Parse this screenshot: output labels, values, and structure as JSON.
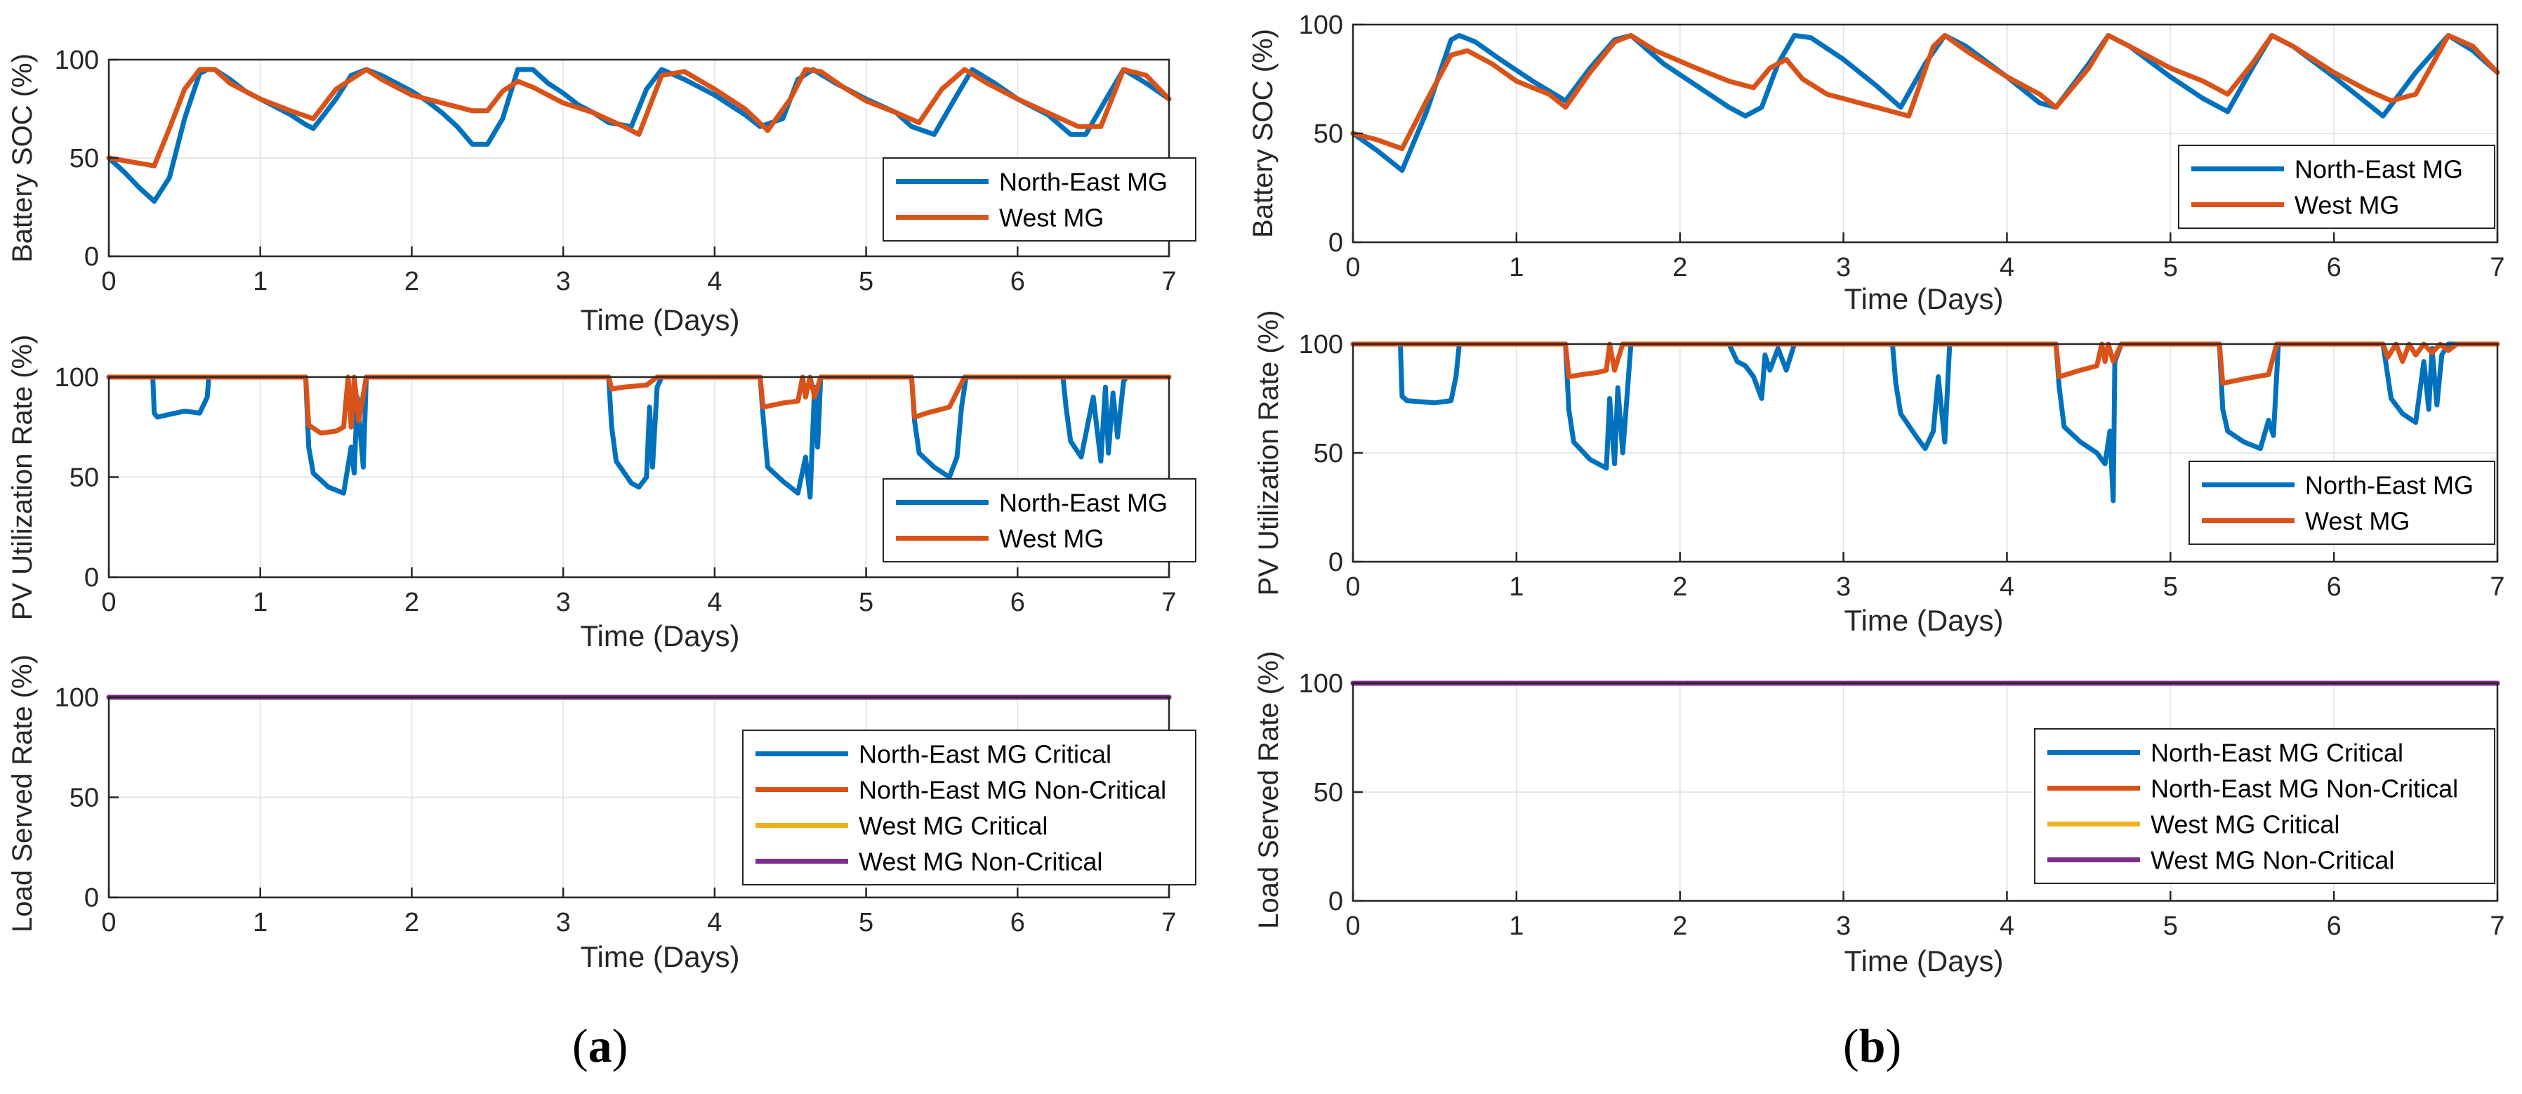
{
  "captions": {
    "a_open": "(",
    "a_letter": "a",
    "a_close": ")",
    "b_open": "(",
    "b_letter": "b",
    "b_close": ")"
  },
  "colors": {
    "north_east": "#0072BD",
    "west": "#D95319",
    "west_critical": "#EDB120",
    "west_noncritical": "#7E2F8E",
    "grid": "#e6e6e6",
    "axis": "#262626"
  },
  "chart_data": [
    {
      "id": "a-soc",
      "panel": "a",
      "type": "line",
      "xlabel": "Time (Days)",
      "ylabel": "Battery SOC (%)",
      "xlim": [
        0,
        7
      ],
      "ylim": [
        0,
        100
      ],
      "xticks": [
        0,
        1,
        2,
        3,
        4,
        5,
        6,
        7
      ],
      "yticks": [
        0,
        50,
        100
      ],
      "grid": true,
      "legend": "right-middle",
      "series": [
        {
          "name": "North-East MG",
          "color": "#0072BD",
          "x": [
            0,
            0.1,
            0.2,
            0.3,
            0.4,
            0.5,
            0.6,
            0.65,
            0.7,
            0.8,
            0.9,
            1.0,
            1.1,
            1.2,
            1.3,
            1.35,
            1.5,
            1.6,
            1.7,
            1.8,
            1.9,
            2.0,
            2.1,
            2.2,
            2.3,
            2.4,
            2.5,
            2.6,
            2.7,
            2.8,
            2.9,
            3.0,
            3.1,
            3.2,
            3.3,
            3.45,
            3.55,
            3.65,
            3.8,
            4.0,
            4.2,
            4.3,
            4.45,
            4.55,
            4.65,
            4.8,
            5.0,
            5.2,
            5.3,
            5.45,
            5.6,
            5.7,
            5.85,
            6.0,
            6.2,
            6.35,
            6.45,
            6.6,
            6.7,
            6.85,
            7.0
          ],
          "y": [
            50,
            43,
            35,
            28,
            40,
            70,
            93,
            95,
            95,
            90,
            84,
            80,
            76,
            72,
            67,
            65,
            80,
            92,
            95,
            92,
            88,
            84,
            79,
            73,
            66,
            57,
            57,
            70,
            95,
            95,
            88,
            83,
            77,
            73,
            68,
            66,
            85,
            95,
            90,
            82,
            72,
            66,
            70,
            90,
            95,
            88,
            80,
            73,
            66,
            62,
            82,
            95,
            88,
            80,
            72,
            62,
            62,
            82,
            95,
            88,
            80
          ]
        },
        {
          "name": "West MG",
          "color": "#D95319",
          "x": [
            0,
            0.15,
            0.3,
            0.4,
            0.5,
            0.6,
            0.7,
            0.8,
            1.0,
            1.2,
            1.35,
            1.5,
            1.7,
            1.8,
            2.0,
            2.2,
            2.4,
            2.5,
            2.6,
            2.7,
            2.8,
            3.0,
            3.2,
            3.4,
            3.5,
            3.65,
            3.8,
            4.0,
            4.2,
            4.35,
            4.5,
            4.6,
            4.7,
            4.85,
            5.0,
            5.2,
            5.35,
            5.5,
            5.65,
            5.8,
            6.0,
            6.2,
            6.4,
            6.55,
            6.7,
            6.85,
            7.0
          ],
          "y": [
            50,
            48,
            46,
            65,
            85,
            95,
            95,
            88,
            80,
            74,
            70,
            85,
            95,
            90,
            82,
            78,
            74,
            74,
            84,
            89,
            86,
            78,
            73,
            66,
            62,
            92,
            94,
            85,
            75,
            64,
            80,
            95,
            94,
            86,
            79,
            73,
            68,
            85,
            95,
            88,
            80,
            73,
            66,
            66,
            95,
            92,
            80
          ]
        }
      ]
    },
    {
      "id": "a-pv",
      "panel": "a",
      "type": "line",
      "xlabel": "Time (Days)",
      "ylabel": "PV Utilization Rate (%)",
      "xlim": [
        0,
        7
      ],
      "ylim": [
        0,
        100
      ],
      "xticks": [
        0,
        1,
        2,
        3,
        4,
        5,
        6,
        7
      ],
      "yticks": [
        0,
        50,
        100
      ],
      "grid": true,
      "legend": "right-middle",
      "series": [
        {
          "name": "North-East MG",
          "color": "#0072BD",
          "x": [
            0,
            0.29,
            0.3,
            0.32,
            0.5,
            0.6,
            0.65,
            0.66,
            1.3,
            1.32,
            1.35,
            1.45,
            1.55,
            1.6,
            1.62,
            1.64,
            1.68,
            1.7,
            3.3,
            3.32,
            3.35,
            3.45,
            3.5,
            3.55,
            3.57,
            3.59,
            3.62,
            3.65,
            4.3,
            4.32,
            4.35,
            4.45,
            4.55,
            4.6,
            4.63,
            4.66,
            4.68,
            4.7,
            5.3,
            5.32,
            5.35,
            5.45,
            5.55,
            5.6,
            5.63,
            5.66,
            6.3,
            6.32,
            6.35,
            6.42,
            6.5,
            6.55,
            6.58,
            6.6,
            6.63,
            6.66,
            6.7,
            6.72,
            7.0
          ],
          "y": [
            100,
            100,
            82,
            80,
            83,
            82,
            90,
            100,
            100,
            65,
            52,
            45,
            42,
            65,
            52,
            90,
            55,
            100,
            100,
            75,
            58,
            47,
            45,
            50,
            85,
            55,
            95,
            100,
            100,
            80,
            55,
            48,
            42,
            60,
            40,
            95,
            65,
            100,
            100,
            78,
            62,
            55,
            50,
            60,
            85,
            100,
            100,
            85,
            68,
            60,
            90,
            58,
            95,
            62,
            92,
            70,
            98,
            100,
            100
          ]
        },
        {
          "name": "West MG",
          "color": "#D95319",
          "x": [
            0,
            1.3,
            1.32,
            1.4,
            1.5,
            1.55,
            1.58,
            1.6,
            1.62,
            1.65,
            1.7,
            3.3,
            3.32,
            3.4,
            3.55,
            3.62,
            4.3,
            4.32,
            4.45,
            4.55,
            4.58,
            4.6,
            4.63,
            4.66,
            4.7,
            5.3,
            5.32,
            5.4,
            5.55,
            5.65,
            7.0
          ],
          "y": [
            100,
            100,
            76,
            72,
            73,
            75,
            100,
            75,
            100,
            78,
            100,
            100,
            94,
            95,
            96,
            100,
            100,
            85,
            87,
            88,
            100,
            90,
            100,
            90,
            100,
            100,
            80,
            82,
            85,
            100,
            100
          ]
        }
      ]
    },
    {
      "id": "a-load",
      "panel": "a",
      "type": "line",
      "xlabel": "Time (Days)",
      "ylabel": "Load Served Rate (%)",
      "xlim": [
        0,
        7
      ],
      "ylim": [
        0,
        100
      ],
      "xticks": [
        0,
        1,
        2,
        3,
        4,
        5,
        6,
        7
      ],
      "yticks": [
        0,
        50,
        100
      ],
      "grid": true,
      "legend": "right-middle",
      "series": [
        {
          "name": "North-East MG Critical",
          "color": "#0072BD",
          "x": [
            0,
            7
          ],
          "y": [
            100,
            100
          ]
        },
        {
          "name": "North-East MG Non-Critical",
          "color": "#D95319",
          "x": [
            0,
            7
          ],
          "y": [
            100,
            100
          ]
        },
        {
          "name": "West MG Critical",
          "color": "#EDB120",
          "x": [
            0,
            7
          ],
          "y": [
            100,
            100
          ]
        },
        {
          "name": "West MG Non-Critical",
          "color": "#7E2F8E",
          "x": [
            0,
            7
          ],
          "y": [
            100,
            100
          ]
        }
      ]
    },
    {
      "id": "b-soc",
      "panel": "b",
      "type": "line",
      "xlabel": "Time (Days)",
      "ylabel": "Battery SOC (%)",
      "xlim": [
        0,
        7
      ],
      "ylim": [
        0,
        100
      ],
      "xticks": [
        0,
        1,
        2,
        3,
        4,
        5,
        6,
        7
      ],
      "yticks": [
        0,
        50,
        100
      ],
      "grid": true,
      "legend": "right-middle",
      "series": [
        {
          "name": "North-East MG",
          "color": "#0072BD",
          "x": [
            0,
            0.15,
            0.3,
            0.45,
            0.6,
            0.65,
            0.75,
            0.9,
            1.1,
            1.3,
            1.45,
            1.6,
            1.7,
            1.9,
            2.1,
            2.3,
            2.4,
            2.5,
            2.6,
            2.7,
            2.8,
            3.0,
            3.2,
            3.35,
            3.5,
            3.62,
            3.75,
            4.0,
            4.2,
            4.3,
            4.5,
            4.62,
            4.75,
            5.0,
            5.2,
            5.35,
            5.5,
            5.62,
            5.75,
            6.0,
            6.2,
            6.3,
            6.5,
            6.7,
            6.85,
            7.0
          ],
          "y": [
            50,
            42,
            33,
            60,
            93,
            95,
            92,
            84,
            74,
            65,
            80,
            93,
            95,
            82,
            72,
            62,
            58,
            62,
            82,
            95,
            94,
            84,
            72,
            62,
            82,
            95,
            90,
            76,
            64,
            62,
            82,
            95,
            90,
            76,
            66,
            60,
            80,
            95,
            90,
            76,
            64,
            58,
            78,
            95,
            88,
            78
          ]
        },
        {
          "name": "West MG",
          "color": "#D95319",
          "x": [
            0,
            0.15,
            0.3,
            0.45,
            0.6,
            0.7,
            0.85,
            1.0,
            1.2,
            1.3,
            1.45,
            1.6,
            1.7,
            1.85,
            2.1,
            2.3,
            2.45,
            2.55,
            2.65,
            2.75,
            2.9,
            3.2,
            3.4,
            3.55,
            3.62,
            3.75,
            4.0,
            4.2,
            4.3,
            4.5,
            4.62,
            4.75,
            5.0,
            5.2,
            5.35,
            5.5,
            5.62,
            5.75,
            6.0,
            6.2,
            6.35,
            6.5,
            6.7,
            6.85,
            7.0
          ],
          "y": [
            50,
            47,
            43,
            65,
            86,
            88,
            82,
            74,
            68,
            62,
            78,
            92,
            95,
            88,
            80,
            74,
            71,
            80,
            84,
            75,
            68,
            62,
            58,
            90,
            95,
            88,
            76,
            68,
            62,
            80,
            95,
            90,
            80,
            74,
            68,
            82,
            95,
            90,
            78,
            70,
            65,
            68,
            95,
            90,
            78
          ]
        }
      ]
    },
    {
      "id": "b-pv",
      "panel": "b",
      "type": "line",
      "xlabel": "Time (Days)",
      "ylabel": "PV Utilization Rate (%)",
      "xlim": [
        0,
        7
      ],
      "ylim": [
        0,
        100
      ],
      "xticks": [
        0,
        1,
        2,
        3,
        4,
        5,
        6,
        7
      ],
      "yticks": [
        0,
        50,
        100
      ],
      "grid": true,
      "legend": "right-middle",
      "series": [
        {
          "name": "North-East MG",
          "color": "#0072BD",
          "x": [
            0,
            0.29,
            0.3,
            0.33,
            0.5,
            0.6,
            0.63,
            0.65,
            1.3,
            1.32,
            1.35,
            1.45,
            1.55,
            1.57,
            1.6,
            1.62,
            1.65,
            1.7,
            2.3,
            2.35,
            2.4,
            2.45,
            2.5,
            2.52,
            2.55,
            2.6,
            2.65,
            2.7,
            3.3,
            3.32,
            3.35,
            3.45,
            3.5,
            3.55,
            3.58,
            3.62,
            3.65,
            4.3,
            4.32,
            4.35,
            4.45,
            4.55,
            4.6,
            4.63,
            4.65,
            4.66,
            4.7,
            5.3,
            5.32,
            5.35,
            5.45,
            5.55,
            5.6,
            5.63,
            5.66,
            6.3,
            6.32,
            6.35,
            6.42,
            6.5,
            6.55,
            6.58,
            6.6,
            6.63,
            6.66,
            6.7,
            6.72,
            7.0
          ],
          "y": [
            100,
            100,
            76,
            74,
            73,
            74,
            85,
            100,
            100,
            70,
            55,
            47,
            43,
            75,
            45,
            80,
            50,
            100,
            100,
            92,
            90,
            85,
            75,
            95,
            88,
            98,
            88,
            100,
            100,
            82,
            68,
            57,
            52,
            60,
            85,
            55,
            100,
            100,
            80,
            62,
            55,
            50,
            45,
            60,
            28,
            92,
            100,
            100,
            70,
            60,
            55,
            52,
            65,
            58,
            100,
            100,
            90,
            75,
            68,
            64,
            92,
            70,
            98,
            72,
            95,
            100,
            100,
            100
          ]
        },
        {
          "name": "West MG",
          "color": "#D95319",
          "x": [
            0,
            1.3,
            1.32,
            1.4,
            1.5,
            1.55,
            1.57,
            1.6,
            1.65,
            1.7,
            4.3,
            4.32,
            4.45,
            4.55,
            4.58,
            4.6,
            4.62,
            4.65,
            4.7,
            5.3,
            5.32,
            5.45,
            5.6,
            5.65,
            6.3,
            6.33,
            6.38,
            6.42,
            6.46,
            6.5,
            6.55,
            6.6,
            6.65,
            6.7,
            6.75,
            7.0
          ],
          "y": [
            100,
            100,
            85,
            86,
            87,
            88,
            100,
            88,
            100,
            100,
            100,
            85,
            88,
            90,
            100,
            92,
            100,
            92,
            100,
            100,
            82,
            84,
            86,
            100,
            100,
            94,
            100,
            92,
            100,
            95,
            100,
            96,
            100,
            97,
            100,
            100
          ]
        }
      ]
    },
    {
      "id": "b-load",
      "panel": "b",
      "type": "line",
      "xlabel": "Time (Days)",
      "ylabel": "Load Served Rate (%)",
      "xlim": [
        0,
        7
      ],
      "ylim": [
        0,
        100
      ],
      "xticks": [
        0,
        1,
        2,
        3,
        4,
        5,
        6,
        7
      ],
      "yticks": [
        0,
        50,
        100
      ],
      "grid": true,
      "legend": "right-middle",
      "series": [
        {
          "name": "North-East MG Critical",
          "color": "#0072BD",
          "x": [
            0,
            7
          ],
          "y": [
            100,
            100
          ]
        },
        {
          "name": "North-East MG Non-Critical",
          "color": "#D95319",
          "x": [
            0,
            7
          ],
          "y": [
            100,
            100
          ]
        },
        {
          "name": "West MG Critical",
          "color": "#EDB120",
          "x": [
            0,
            7
          ],
          "y": [
            100,
            100
          ]
        },
        {
          "name": "West MG Non-Critical",
          "color": "#7E2F8E",
          "x": [
            0,
            7
          ],
          "y": [
            100,
            100
          ]
        }
      ]
    }
  ]
}
